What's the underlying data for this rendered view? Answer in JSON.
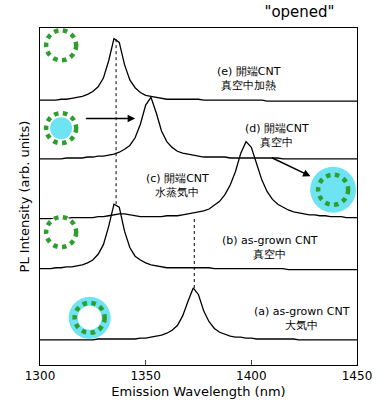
{
  "chart_data": {
    "type": "line",
    "title": "\"opened\"",
    "x_label": "Emission Wavelength (nm)",
    "y_label": "PL Intensity (arb. units)",
    "xlim": [
      1300,
      1450
    ],
    "xticks": [
      1300,
      1350,
      1400,
      1450
    ],
    "ylim": [
      0,
      35
    ],
    "tick_labels": "x",
    "grid": false,
    "x": [
      1300,
      1302.5,
      1305,
      1307.5,
      1310,
      1312.5,
      1315,
      1317.5,
      1320,
      1322.5,
      1325,
      1327.5,
      1330,
      1332.5,
      1335,
      1337.5,
      1340,
      1342.5,
      1345,
      1347.5,
      1350,
      1352.5,
      1355,
      1357.5,
      1360,
      1362.5,
      1365,
      1367.5,
      1370,
      1372.5,
      1375,
      1377.5,
      1380,
      1382.5,
      1385,
      1387.5,
      1390,
      1392.5,
      1395,
      1397.5,
      1400,
      1402.5,
      1405,
      1407.5,
      1410,
      1412.5,
      1415,
      1417.5,
      1420,
      1422.5,
      1425,
      1427.5,
      1430,
      1432.5,
      1435,
      1437.5,
      1440,
      1442.5,
      1445,
      1447.5,
      1450
    ],
    "series": [
      {
        "color": "#000000",
        "values": [
          2.6,
          2.6,
          2.6,
          2.6,
          2.6,
          2.6,
          2.6,
          2.6,
          2.6,
          2.6,
          2.6,
          2.7,
          2.7,
          2.7,
          2.7,
          2.7,
          2.7,
          2.7,
          2.7,
          2.8,
          2.8,
          2.9,
          3.0,
          3.1,
          3.3,
          3.6,
          4.1,
          5.1,
          6.6,
          8.0,
          7.3,
          5.6,
          4.5,
          3.8,
          3.4,
          3.2,
          3.0,
          2.9,
          2.9,
          2.8,
          2.8,
          2.7,
          2.7,
          2.7,
          2.7,
          2.7,
          2.7,
          2.7,
          2.7,
          2.6,
          2.6,
          2.6,
          2.6,
          2.6,
          2.6,
          2.6,
          2.6,
          2.6,
          2.6,
          2.6,
          2.6
        ]
      },
      {
        "color": "#000000",
        "values": [
          10.0,
          10.0,
          10.0,
          10.1,
          10.1,
          10.2,
          10.2,
          10.3,
          10.4,
          10.6,
          10.9,
          11.5,
          12.5,
          14.4,
          16.7,
          16.4,
          13.9,
          12.2,
          11.3,
          10.9,
          10.6,
          10.4,
          10.3,
          10.2,
          10.1,
          10.1,
          10.1,
          10.1,
          10.1,
          10.1,
          10.1,
          10.1,
          10.1,
          10.0,
          10.0,
          10.0,
          10.0,
          10.0,
          10.0,
          10.0,
          10.0,
          10.0,
          10.0,
          10.0,
          10.0,
          10.0,
          10.0,
          9.9,
          9.9,
          9.9,
          9.9,
          9.9,
          9.9,
          9.9,
          9.9,
          9.9,
          9.9,
          9.9,
          9.9,
          9.9,
          9.9
        ]
      },
      {
        "color": "#000000",
        "values": [
          15.2,
          15.2,
          15.2,
          15.2,
          15.2,
          15.2,
          15.3,
          15.3,
          15.3,
          15.3,
          15.3,
          15.4,
          15.4,
          15.5,
          15.6,
          15.7,
          15.7,
          15.6,
          15.5,
          15.4,
          15.4,
          15.4,
          15.4,
          15.4,
          15.5,
          15.5,
          15.5,
          15.6,
          15.7,
          15.8,
          15.9,
          16.0,
          16.2,
          16.6,
          17.0,
          17.7,
          18.7,
          20.1,
          22.0,
          23.2,
          22.6,
          20.9,
          19.2,
          18.0,
          17.2,
          16.7,
          16.4,
          16.1,
          15.9,
          15.8,
          15.7,
          15.6,
          15.6,
          15.5,
          15.5,
          15.4,
          15.4,
          15.4,
          15.3,
          15.3,
          15.3
        ]
      },
      {
        "color": "#000000",
        "values": [
          21.4,
          21.4,
          21.4,
          21.4,
          21.4,
          21.5,
          21.5,
          21.5,
          21.5,
          21.6,
          21.6,
          21.7,
          21.7,
          21.8,
          21.9,
          22.1,
          22.4,
          22.8,
          23.6,
          25.0,
          27.0,
          27.8,
          26.2,
          24.3,
          23.2,
          22.6,
          22.2,
          22.0,
          21.9,
          21.8,
          21.7,
          21.6,
          21.6,
          21.6,
          21.6,
          21.6,
          21.5,
          21.5,
          21.5,
          21.5,
          21.5,
          21.5,
          21.5,
          21.5,
          21.5,
          21.5,
          21.4,
          21.4,
          21.4,
          21.4,
          21.4,
          21.4,
          21.4,
          21.4,
          21.4,
          21.4,
          21.4,
          21.4,
          21.4,
          21.4,
          21.4
        ]
      },
      {
        "color": "#000000",
        "values": [
          27.5,
          27.5,
          27.5,
          27.5,
          27.6,
          27.6,
          27.7,
          27.8,
          27.9,
          28.1,
          28.4,
          28.9,
          29.8,
          31.6,
          33.9,
          33.5,
          31.2,
          29.6,
          28.8,
          28.3,
          28.0,
          27.9,
          27.8,
          27.7,
          27.6,
          27.6,
          27.6,
          27.6,
          27.6,
          27.6,
          27.6,
          27.5,
          27.5,
          27.5,
          27.5,
          27.5,
          27.5,
          27.5,
          27.5,
          27.5,
          27.5,
          27.5,
          27.5,
          27.4,
          27.4,
          27.4,
          27.4,
          27.4,
          27.4,
          27.4,
          27.4,
          27.4,
          27.4,
          27.4,
          27.4,
          27.4,
          27.4,
          27.4,
          27.4,
          27.4,
          27.4
        ]
      }
    ],
    "annotations": [
      [
        "(a) as-grown CNT",
        "大気中"
      ],
      [
        "(b) as-grown CNT",
        "真空中"
      ],
      [
        "(c) 開端CNT",
        "水蒸気中"
      ],
      [
        "(d) 開端CNT",
        "真空中"
      ],
      [
        "(e) 開端CNT",
        "真空中加熱"
      ]
    ],
    "vlines": [
      1336,
      1373
    ]
  }
}
